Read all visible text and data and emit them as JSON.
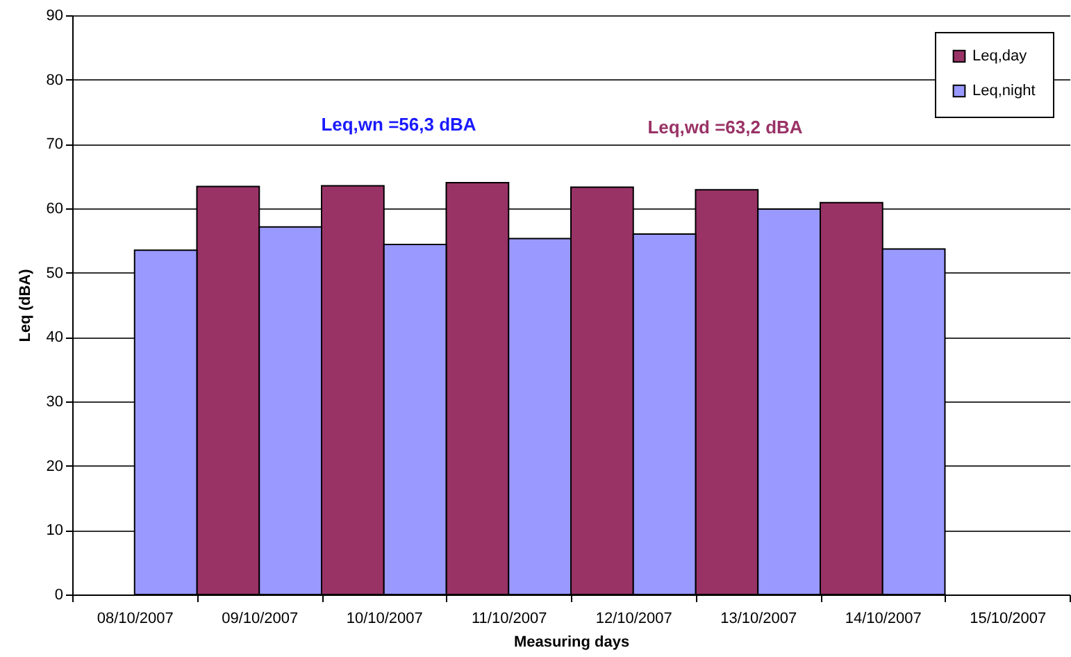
{
  "chart_data": {
    "type": "bar",
    "xlabel": "Measuring days",
    "ylabel": "Leq (dBA)",
    "categories": [
      "08/10/2007",
      "09/10/2007",
      "10/10/2007",
      "11/10/2007",
      "12/10/2007",
      "13/10/2007",
      "14/10/2007",
      "15/10/2007"
    ],
    "series": [
      {
        "name": "Leq,day",
        "color": "#993366",
        "values": [
          null,
          63.4,
          63.5,
          64.0,
          63.3,
          62.9,
          60.9,
          null
        ]
      },
      {
        "name": "Leq,night",
        "color": "#9999ff",
        "values": [
          53.5,
          57.1,
          54.4,
          55.3,
          56.0,
          59.9,
          53.7,
          null
        ]
      }
    ],
    "ylim": [
      0,
      90
    ],
    "yticks": [
      0,
      10,
      20,
      30,
      40,
      50,
      60,
      70,
      80,
      90
    ],
    "grid": "y",
    "legend": "top right",
    "annotations": [
      "Leq,wn =56,3 dBA",
      "Leq,wd =63,2 dBA"
    ]
  }
}
